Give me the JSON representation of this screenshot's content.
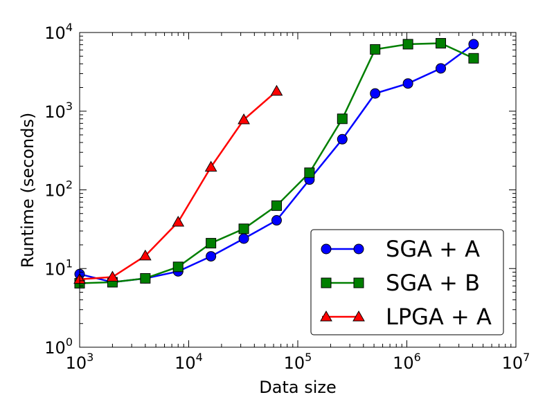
{
  "chart_data": {
    "type": "line",
    "xscale": "log",
    "yscale": "log",
    "xlabel": "Data size",
    "ylabel": "Runtime (seconds)",
    "xlim": [
      1000,
      10000000
    ],
    "ylim": [
      1,
      10000
    ],
    "xticks": [
      {
        "base": "10",
        "exp": "3"
      },
      {
        "base": "10",
        "exp": "4"
      },
      {
        "base": "10",
        "exp": "5"
      },
      {
        "base": "10",
        "exp": "6"
      },
      {
        "base": "10",
        "exp": "7"
      }
    ],
    "yticks": [
      {
        "base": "10",
        "exp": "0"
      },
      {
        "base": "10",
        "exp": "1"
      },
      {
        "base": "10",
        "exp": "2"
      },
      {
        "base": "10",
        "exp": "3"
      },
      {
        "base": "10",
        "exp": "4"
      }
    ],
    "grid": false,
    "legend_position": "bottom-right",
    "series": [
      {
        "name": "SGA + A",
        "color": "#0000ff",
        "marker": "circle",
        "x": [
          1000,
          2000,
          4000,
          8000,
          16000,
          32000,
          64000,
          128000,
          256000,
          512000,
          1024000,
          2048000,
          4096000
        ],
        "y": [
          8.5,
          6.7,
          7.5,
          9.2,
          14.3,
          24,
          41,
          135,
          440,
          1680,
          2250,
          3500,
          7100
        ]
      },
      {
        "name": "SGA + B",
        "color": "#007f00",
        "marker": "square",
        "x": [
          1000,
          2000,
          4000,
          8000,
          16000,
          32000,
          64000,
          128000,
          256000,
          512000,
          1024000,
          2048000,
          4096000
        ],
        "y": [
          6.5,
          6.7,
          7.5,
          10.5,
          21,
          32,
          63,
          165,
          800,
          6100,
          7100,
          7300,
          4700
        ]
      },
      {
        "name": "LPGA + A",
        "color": "#ff0000",
        "marker": "triangle",
        "x": [
          1000,
          2000,
          4000,
          8000,
          16000,
          32000,
          64000
        ],
        "y": [
          7.3,
          7.8,
          14.5,
          39,
          195,
          780,
          1800
        ]
      }
    ]
  }
}
